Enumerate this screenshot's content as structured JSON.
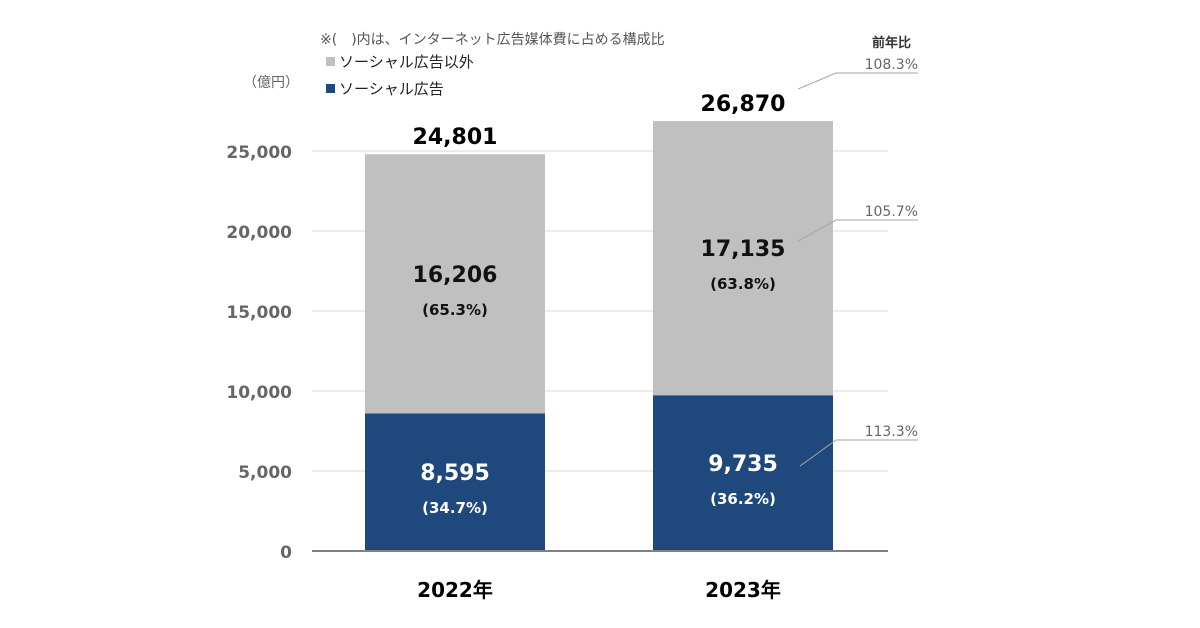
{
  "note": "※(　)内は、インターネット広告媒体費に占める構成比",
  "unit_label": "（億円）",
  "yoy_title": "前年比",
  "colors": {
    "social": "#1f497d",
    "other": "#c0c0c0",
    "axis_text": "#666666",
    "grid": "#d9d9d9",
    "leader": "#a6a6a6"
  },
  "chart_data": {
    "type": "bar",
    "stacked": true,
    "categories": [
      "2022年",
      "2023年"
    ],
    "series": [
      {
        "name": "ソーシャル広告",
        "values": [
          8595,
          9735
        ],
        "value_labels": [
          "8,595",
          "9,735"
        ],
        "share_labels": [
          "(34.7%)",
          "(36.2%)"
        ],
        "color": "#1f497d"
      },
      {
        "name": "ソーシャル広告以外",
        "values": [
          16206,
          17135
        ],
        "value_labels": [
          "16,206",
          "17,135"
        ],
        "share_labels": [
          "(65.3%)",
          "(63.8%)"
        ],
        "color": "#c0c0c0"
      }
    ],
    "totals": [
      24801,
      26870
    ],
    "total_labels": [
      "24,801",
      "26,870"
    ],
    "yoy": {
      "total": "108.3%",
      "other": "105.7%",
      "social": "113.3%"
    },
    "ylim": [
      0,
      27500
    ],
    "yticks": [
      0,
      5000,
      10000,
      15000,
      20000,
      25000
    ],
    "ytick_labels": [
      "0",
      "5,000",
      "10,000",
      "15,000",
      "20,000",
      "25,000"
    ],
    "grid": true,
    "legend_position": "top-left"
  }
}
